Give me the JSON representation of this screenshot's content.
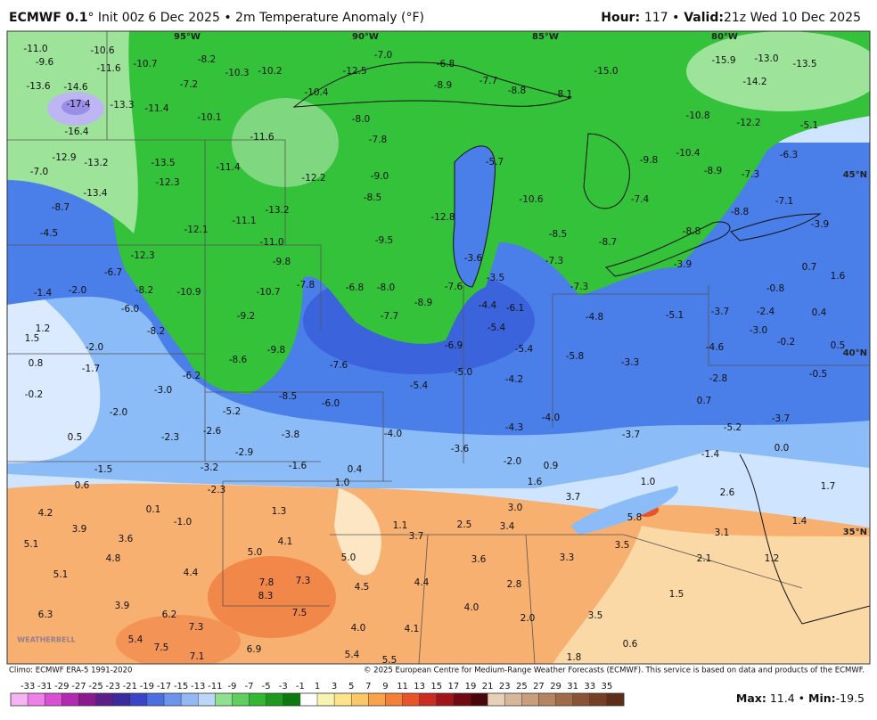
{
  "header": {
    "model": "ECMWF 0.1",
    "title": "° Init 00z 6 Dec 2025 • 2m Temperature Anomaly (°F)",
    "hour_label": "Hour:",
    "hour_text": "117 •",
    "valid_label": "Valid:",
    "valid_text": "21z Wed 10 Dec 2025"
  },
  "map": {
    "lon_labels": [
      "95°W",
      "90°W",
      "85°W",
      "80°W"
    ],
    "lat_labels": [
      "45°N",
      "40°N",
      "35°N"
    ],
    "watermark": "WEATHERBELL",
    "values": [
      "-11.0",
      "-9.6",
      "-10.6",
      "-11.6",
      "-10.7",
      "-8.2",
      "-10.3",
      "-10.2",
      "-7.0",
      "-6.8",
      "-7.7",
      "-8.8",
      "-8.9",
      "-12.5",
      "-15.0",
      "-15.9",
      "-13.0",
      "-13.5",
      "-14.2",
      "-13.6",
      "-14.6",
      "-17.4",
      "-16.4",
      "-13.3",
      "-11.4",
      "-7.2",
      "-10.1",
      "-11.6",
      "-10.4",
      "-8.0",
      "-7.8",
      "-8.1",
      "-10.8",
      "-12.2",
      "-5.1",
      "-6.3",
      "-10.4",
      "-9.8",
      "-12.9",
      "-13.2",
      "-13.5",
      "-7.0",
      "-13.4",
      "-12.3",
      "-11.4",
      "-12.2",
      "-9.0",
      "-5.7",
      "-10.6",
      "-7.4",
      "-8.9",
      "-7.3",
      "-7.1",
      "-8.8",
      "-8.8",
      "-8.7",
      "-4.5",
      "-12.1",
      "-11.1",
      "-13.2",
      "-8.5",
      "-9.5",
      "-12.8",
      "-8.5",
      "-8.7",
      "-7.3",
      "-3.6",
      "-3.5",
      "-7.3",
      "-3.9",
      "0.7",
      "1.6",
      "-0.8",
      "-3.9",
      "-12.3",
      "-11.0",
      "-9.8",
      "-6.7",
      "-8.2",
      "-10.9",
      "-10.7",
      "-7.8",
      "-6.8",
      "-8.0",
      "-8.9",
      "-7.6",
      "-7.7",
      "-6.9",
      "-4.4",
      "-6.1",
      "-4.8",
      "-5.1",
      "-3.7",
      "-2.4",
      "0.4",
      "-3.0",
      "-5.4",
      "-5.4",
      "-1.4",
      "-2.0",
      "-6.0",
      "-9.2",
      "-8.2",
      "-9.8",
      "-7.6",
      "-8.6",
      "-6.2",
      "-5.4",
      "-5.0",
      "-4.2",
      "-5.8",
      "-3.3",
      "-4.6",
      "-0.2",
      "0.5",
      "1.2",
      "1.5",
      "-2.0",
      "0.8",
      "-1.7",
      "-3.0",
      "-0.2",
      "-2.0",
      "-5.2",
      "-8.5",
      "-6.0",
      "-2.8",
      "-0.5",
      "0.7",
      "-3.7",
      "-5.2",
      "-4.3",
      "-4.0",
      "-3.7",
      "-2.6",
      "-3.8",
      "-4.0",
      "0.5",
      "-2.3",
      "-3.6",
      "-2.9",
      "-1.5",
      "-3.2",
      "-1.6",
      "0.4",
      "-2.0",
      "0.9",
      "-1.4",
      "0.0",
      "0.6",
      "-2.3",
      "1.0",
      "1.6",
      "1.0",
      "1.7",
      "2.6",
      "4.2",
      "0.1",
      "1.3",
      "3.0",
      "3.7",
      "3.9",
      "-1.0",
      "1.1",
      "2.5",
      "3.4",
      "5.8",
      "3.1",
      "1.4",
      "5.1",
      "3.6",
      "5.0",
      "4.1",
      "3.7",
      "3.5",
      "4.8",
      "5.0",
      "3.6",
      "3.3",
      "2.1",
      "1.2",
      "4.4",
      "5.1",
      "7.8",
      "7.3",
      "4.5",
      "4.4",
      "2.8",
      "8.3",
      "1.5",
      "3.9",
      "4.0",
      "6.3",
      "6.2",
      "7.5",
      "2.0",
      "3.5",
      "7.3",
      "4.0",
      "4.1",
      "5.4",
      "7.5",
      "6.9",
      "5.4",
      "5.5",
      "1.8",
      "0.6",
      "7.1"
    ]
  },
  "colorbar": {
    "ticks": [
      -33,
      -31,
      -29,
      -27,
      -25,
      -23,
      -21,
      -19,
      -17,
      -15,
      -13,
      -11,
      -9,
      -7,
      -5,
      -3,
      -1,
      1,
      3,
      5,
      7,
      9,
      11,
      13,
      15,
      17,
      19,
      21,
      23,
      25,
      27,
      29,
      31,
      33,
      35
    ],
    "colors": [
      "#f6b3f1",
      "#ee7fe9",
      "#d94fd4",
      "#b22ab0",
      "#8a1a8e",
      "#5b1f8a",
      "#3a2a9e",
      "#3845c8",
      "#4b6ee0",
      "#6b95ec",
      "#94b8f3",
      "#bdd5f8",
      "#8fe08f",
      "#5fcf5f",
      "#32b832",
      "#1f9a1f",
      "#0d7a0d",
      "#ffffff",
      "#f7f3b0",
      "#fde38a",
      "#fcc867",
      "#f9a44a",
      "#f47f36",
      "#e8532a",
      "#cc2b22",
      "#a0141a",
      "#700a10",
      "#4a050a",
      "#e8d0b8",
      "#d8b89a",
      "#c89e7c",
      "#b58460",
      "#a06b48",
      "#8a5434",
      "#744024",
      "#5e2e18"
    ]
  },
  "footer": {
    "climo": "Climo: ECMWF ERA-5 1991-2020",
    "copyright": "© 2025 European Centre for Medium-Range Weather Forecasts (ECMWF). This service is based on data and products of the ECMWF.",
    "max_label": "Max:",
    "max": 11.4,
    "separator": "•",
    "min_label": "Min:",
    "min": -19.5
  }
}
